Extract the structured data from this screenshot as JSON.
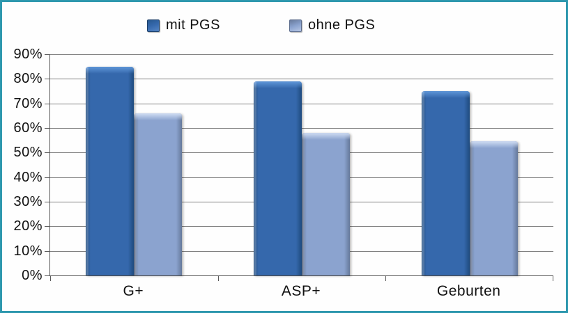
{
  "frame": {
    "border_color": "#2E98AE",
    "background": "#FEFEFE"
  },
  "chart_data": {
    "type": "bar",
    "title": "",
    "xlabel": "",
    "ylabel": "",
    "categories": [
      "G+",
      "ASP+",
      "Geburten"
    ],
    "series": [
      {
        "name": "mit PGS",
        "color_main": "#3568AC",
        "color_edge": "#1F4B7E",
        "color_highlight": "#5B92D4",
        "values": [
          85,
          79,
          75
        ]
      },
      {
        "name": "ohne PGS",
        "color_main": "#8BA3CF",
        "color_edge": "#66799B",
        "color_highlight": "#C9D7EF",
        "values": [
          66,
          58,
          54.5
        ]
      }
    ],
    "ylim": [
      0,
      90
    ],
    "ytick_step": 10,
    "ytick_labels": [
      "0%",
      "10%",
      "20%",
      "30%",
      "40%",
      "50%",
      "60%",
      "70%",
      "80%",
      "90%"
    ],
    "grid": true,
    "gridline_color": "#7F7F7F",
    "axis_color": "#595959",
    "legend_position": "top"
  }
}
